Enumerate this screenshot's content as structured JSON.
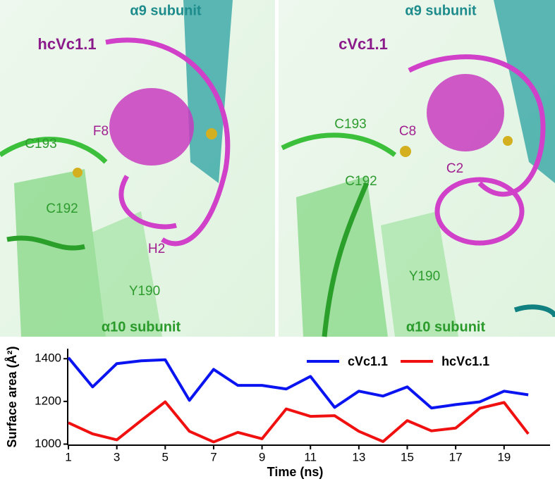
{
  "panels": [
    {
      "top_label": "α9 subunit",
      "peptide": "hcVc1.1",
      "bottom_label": "α10 subunit",
      "residues": [
        "F8",
        "C193",
        "C192",
        "H2",
        "Y190"
      ]
    },
    {
      "top_label": "α9 subunit",
      "peptide": "cVc1.1",
      "bottom_label": "α10 subunit",
      "residues": [
        "C193",
        "C8",
        "C2",
        "C192",
        "Y190"
      ]
    }
  ],
  "chart_data": {
    "type": "line",
    "x_label": "Time (ns)",
    "y_label": "Surface area (Å²)",
    "x": [
      1,
      2,
      3,
      4,
      5,
      6,
      7,
      8,
      9,
      10,
      11,
      12,
      13,
      14,
      15,
      16,
      17,
      18,
      19,
      20
    ],
    "series": [
      {
        "name": "cVc1.1",
        "color": "#0a14f0",
        "values": [
          1405,
          1268,
          1377,
          1390,
          1395,
          1205,
          1350,
          1275,
          1275,
          1258,
          1317,
          1172,
          1248,
          1225,
          1268,
          1169,
          1185,
          1198,
          1248,
          1231
        ]
      },
      {
        "name": "hcVc1.1",
        "color": "#f01010",
        "values": [
          1100,
          1048,
          1020,
          1110,
          1198,
          1060,
          1010,
          1055,
          1025,
          1165,
          1130,
          1133,
          1060,
          1012,
          1110,
          1062,
          1075,
          1168,
          1195,
          1048
        ]
      }
    ],
    "xlim": [
      1,
      20.9
    ],
    "ylim": [
      995,
      1447
    ],
    "xticks": [
      1,
      3,
      5,
      7,
      9,
      11,
      13,
      15,
      17,
      19
    ],
    "yticks": [
      1000,
      1200,
      1400
    ],
    "legend": "top-right"
  }
}
